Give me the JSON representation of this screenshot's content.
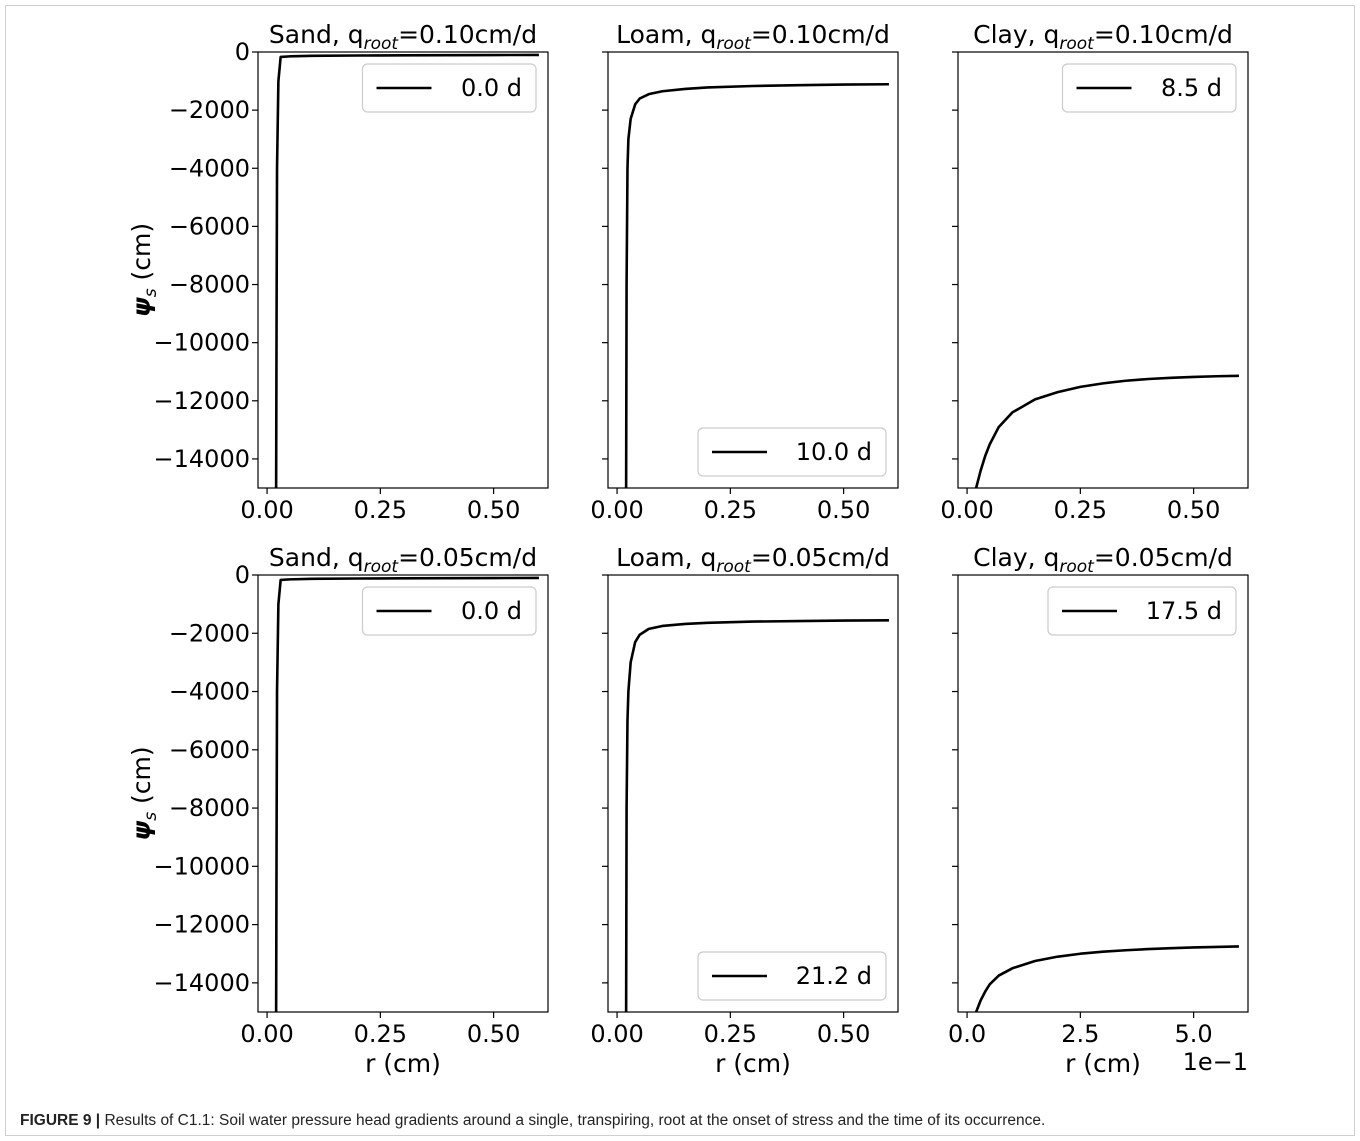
{
  "caption": {
    "label": "FIGURE 9 |",
    "text": " Results of C1.1: Soil water pressure head gradients around a single, transpiring, root at the onset of stress and the time of its occurrence."
  },
  "colors": {
    "line": "#000000",
    "axes": "#000000",
    "legend_border": "#cccccc"
  },
  "chart_data": [
    {
      "type": "line",
      "row": 0,
      "col": 0,
      "title_main": "Sand, q",
      "title_sub": "root",
      "title_tail": "=0.10cm/d",
      "xlabel": "",
      "ylabel": "ψs (cm)",
      "xlim": [
        -0.02,
        0.62
      ],
      "ylim": [
        -15000,
        0
      ],
      "xticks": [
        0.0,
        0.25,
        0.5
      ],
      "xticklabels": [
        "0.00",
        "0.25",
        "0.50"
      ],
      "yticks": [
        0,
        -2000,
        -4000,
        -6000,
        -8000,
        -10000,
        -12000,
        -14000
      ],
      "yticklabels": [
        "0",
        "−2000",
        "−4000",
        "−6000",
        "−8000",
        "−10000",
        "−12000",
        "−14000"
      ],
      "legend": {
        "label": "0.0 d",
        "position": "top-right"
      },
      "series": [
        {
          "name": "0.0 d",
          "x": [
            0.02,
            0.021,
            0.022,
            0.025,
            0.03,
            0.05,
            0.1,
            0.2,
            0.3,
            0.4,
            0.5,
            0.6
          ],
          "y": [
            -15000,
            -9000,
            -4000,
            -1000,
            -170,
            -150,
            -130,
            -120,
            -115,
            -110,
            -105,
            -100
          ]
        }
      ]
    },
    {
      "type": "line",
      "row": 0,
      "col": 1,
      "title_main": "Loam, q",
      "title_sub": "root",
      "title_tail": "=0.10cm/d",
      "xlabel": "",
      "ylabel": "",
      "xlim": [
        -0.02,
        0.62
      ],
      "ylim": [
        -15000,
        0
      ],
      "xticks": [
        0.0,
        0.25,
        0.5
      ],
      "xticklabels": [
        "0.00",
        "0.25",
        "0.50"
      ],
      "yticks": [
        0,
        -2000,
        -4000,
        -6000,
        -8000,
        -10000,
        -12000,
        -14000
      ],
      "yticklabels": [],
      "legend": {
        "label": "10.0 d",
        "position": "bottom-right"
      },
      "series": [
        {
          "name": "10.0 d",
          "x": [
            0.02,
            0.021,
            0.023,
            0.025,
            0.03,
            0.04,
            0.05,
            0.07,
            0.1,
            0.15,
            0.2,
            0.3,
            0.4,
            0.5,
            0.6
          ],
          "y": [
            -15000,
            -8000,
            -4000,
            -3000,
            -2300,
            -1800,
            -1600,
            -1450,
            -1350,
            -1270,
            -1220,
            -1170,
            -1140,
            -1120,
            -1110
          ]
        }
      ]
    },
    {
      "type": "line",
      "row": 0,
      "col": 2,
      "title_main": "Clay, q",
      "title_sub": "root",
      "title_tail": "=0.10cm/d",
      "xlabel": "",
      "ylabel": "",
      "xlim": [
        -0.02,
        0.62
      ],
      "ylim": [
        -15000,
        0
      ],
      "xticks": [
        0.0,
        0.25,
        0.5
      ],
      "xticklabels": [
        "0.00",
        "0.25",
        "0.50"
      ],
      "yticks": [
        0,
        -2000,
        -4000,
        -6000,
        -8000,
        -10000,
        -12000,
        -14000
      ],
      "yticklabels": [],
      "legend": {
        "label": "8.5 d",
        "position": "top-right"
      },
      "series": [
        {
          "name": "8.5 d",
          "x": [
            0.02,
            0.025,
            0.03,
            0.04,
            0.05,
            0.07,
            0.1,
            0.15,
            0.2,
            0.25,
            0.3,
            0.35,
            0.4,
            0.45,
            0.5,
            0.55,
            0.6
          ],
          "y": [
            -15000,
            -14700,
            -14400,
            -13900,
            -13500,
            -12900,
            -12400,
            -11950,
            -11700,
            -11520,
            -11400,
            -11310,
            -11250,
            -11210,
            -11180,
            -11155,
            -11140
          ]
        }
      ]
    },
    {
      "type": "line",
      "row": 1,
      "col": 0,
      "title_main": "Sand, q",
      "title_sub": "root",
      "title_tail": "=0.05cm/d",
      "xlabel": "r (cm)",
      "ylabel": "ψs (cm)",
      "xlim": [
        -0.02,
        0.62
      ],
      "ylim": [
        -15000,
        0
      ],
      "xticks": [
        0.0,
        0.25,
        0.5
      ],
      "xticklabels": [
        "0.00",
        "0.25",
        "0.50"
      ],
      "yticks": [
        0,
        -2000,
        -4000,
        -6000,
        -8000,
        -10000,
        -12000,
        -14000
      ],
      "yticklabels": [
        "0",
        "−2000",
        "−4000",
        "−6000",
        "−8000",
        "−10000",
        "−12000",
        "−14000"
      ],
      "legend": {
        "label": "0.0 d",
        "position": "top-right"
      },
      "series": [
        {
          "name": "0.0 d",
          "x": [
            0.02,
            0.021,
            0.022,
            0.025,
            0.03,
            0.05,
            0.1,
            0.2,
            0.3,
            0.4,
            0.5,
            0.6
          ],
          "y": [
            -15000,
            -9000,
            -4000,
            -1000,
            -170,
            -150,
            -130,
            -120,
            -115,
            -110,
            -105,
            -100
          ]
        }
      ]
    },
    {
      "type": "line",
      "row": 1,
      "col": 1,
      "title_main": "Loam, q",
      "title_sub": "root",
      "title_tail": "=0.05cm/d",
      "xlabel": "r (cm)",
      "ylabel": "",
      "xlim": [
        -0.02,
        0.62
      ],
      "ylim": [
        -15000,
        0
      ],
      "xticks": [
        0.0,
        0.25,
        0.5
      ],
      "xticklabels": [
        "0.00",
        "0.25",
        "0.50"
      ],
      "yticks": [
        0,
        -2000,
        -4000,
        -6000,
        -8000,
        -10000,
        -12000,
        -14000
      ],
      "yticklabels": [],
      "legend": {
        "label": "21.2 d",
        "position": "bottom-right"
      },
      "series": [
        {
          "name": "21.2 d",
          "x": [
            0.02,
            0.021,
            0.023,
            0.025,
            0.03,
            0.04,
            0.05,
            0.07,
            0.1,
            0.15,
            0.2,
            0.3,
            0.4,
            0.5,
            0.6
          ],
          "y": [
            -15000,
            -8000,
            -5000,
            -4000,
            -3000,
            -2300,
            -2050,
            -1850,
            -1750,
            -1680,
            -1640,
            -1600,
            -1580,
            -1565,
            -1555
          ]
        }
      ]
    },
    {
      "type": "line",
      "row": 1,
      "col": 2,
      "title_main": "Clay, q",
      "title_sub": "root",
      "title_tail": "=0.05cm/d",
      "xlabel": "r (cm)",
      "ylabel": "",
      "xlim": [
        -0.2,
        6.2
      ],
      "ylim": [
        -15000,
        0
      ],
      "xticks": [
        0.0,
        2.5,
        5.0
      ],
      "xticklabels": [
        "0.0",
        "2.5",
        "5.0"
      ],
      "x_offset_label": "1e−1",
      "yticks": [
        0,
        -2000,
        -4000,
        -6000,
        -8000,
        -10000,
        -12000,
        -14000
      ],
      "yticklabels": [],
      "legend": {
        "label": "17.5 d",
        "position": "top-right"
      },
      "series": [
        {
          "name": "17.5 d",
          "x": [
            0.2,
            0.3,
            0.4,
            0.5,
            0.7,
            1.0,
            1.5,
            2.0,
            2.5,
            3.0,
            3.5,
            4.0,
            4.5,
            5.0,
            5.5,
            6.0
          ],
          "y": [
            -15000,
            -14600,
            -14300,
            -14050,
            -13750,
            -13500,
            -13250,
            -13100,
            -13000,
            -12930,
            -12880,
            -12840,
            -12810,
            -12785,
            -12765,
            -12750
          ]
        }
      ]
    }
  ]
}
